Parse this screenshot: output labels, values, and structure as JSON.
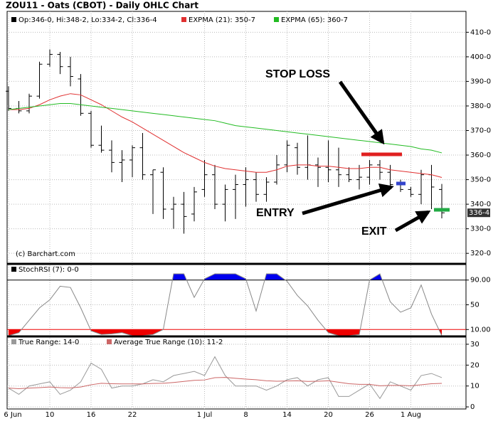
{
  "chart_data": [
    {
      "type": "ohlc",
      "title": "ZOU11 - Oats (CBOT) - Daily OHLC Chart",
      "annotations": [
        "STOP LOSS",
        "ENTRY",
        "EXIT"
      ],
      "credit": "(c) Barchart.com",
      "last_label": "336-4",
      "ylim": [
        316,
        418.5
      ],
      "yticks": [
        {
          "value": 320,
          "label": "320-0"
        },
        {
          "value": 330,
          "label": "330-0"
        },
        {
          "value": 340,
          "label": "340-0"
        },
        {
          "value": 350,
          "label": "350-0"
        },
        {
          "value": 360,
          "label": "360-0"
        },
        {
          "value": 370,
          "label": "370-0"
        },
        {
          "value": 380,
          "label": "380-0"
        },
        {
          "value": 390,
          "label": "390-0"
        },
        {
          "value": 400,
          "label": "400-0"
        },
        {
          "value": 410,
          "label": "410-0"
        }
      ],
      "grid": true,
      "series": [
        {
          "name": "Op:346-0, Hi:348-2, Lo:334-2, Cl:336-4",
          "color": "#000000",
          "open": [
            386,
            379,
            378,
            384,
            397,
            401,
            396,
            391,
            377,
            364,
            362,
            357,
            358,
            363,
            352,
            353,
            338,
            340,
            336,
            346,
            352,
            340,
            346,
            348,
            350,
            344,
            349,
            356,
            363,
            355,
            356,
            355,
            354,
            352,
            350,
            351,
            356,
            353,
            348,
            346,
            344,
            352,
            346
          ],
          "high": [
            388,
            382,
            385,
            398,
            403,
            402,
            400,
            393,
            378,
            372,
            366,
            362,
            364,
            369,
            354,
            355,
            343,
            345,
            347,
            358,
            356,
            348,
            352,
            355,
            353,
            351,
            360,
            366,
            365,
            368,
            359,
            366,
            363,
            355,
            356,
            358,
            358,
            356,
            350,
            347,
            354,
            356,
            348.25
          ],
          "low": [
            378,
            377,
            377,
            383,
            396,
            393,
            388,
            376,
            363,
            361,
            353,
            349,
            351,
            350,
            336,
            334,
            330,
            328,
            333,
            343,
            338,
            333,
            334,
            339,
            341,
            341,
            348,
            353,
            352,
            350,
            347,
            349,
            347,
            349,
            346,
            348,
            350,
            346,
            345,
            343,
            340,
            338,
            334.25
          ],
          "close": [
            379,
            378,
            384,
            397,
            401,
            396,
            392,
            377,
            364,
            362,
            357,
            358,
            363,
            352,
            354,
            338,
            340,
            335,
            345,
            352,
            340,
            346,
            348,
            350,
            344,
            349,
            356,
            364,
            355,
            356,
            355,
            354,
            352,
            350,
            351,
            356,
            353,
            348,
            346,
            344,
            352,
            347,
            336.5
          ]
        },
        {
          "name": "EXPMA (21): 350-7",
          "color": "#e03030",
          "values": [
            378.5,
            378.5,
            379,
            380.5,
            382.5,
            384,
            385,
            384.5,
            382.5,
            380.5,
            378,
            375.5,
            373.5,
            371,
            368.5,
            366,
            363.5,
            361,
            359,
            357,
            355.5,
            354.5,
            354,
            353.5,
            353,
            353,
            354,
            355.5,
            356,
            356,
            355.5,
            355.5,
            355,
            354.5,
            354.5,
            355,
            355,
            354,
            353.5,
            353,
            352.5,
            352,
            350.9
          ]
        },
        {
          "name": "EXPMA (65): 360-7",
          "color": "#22bb22",
          "values": [
            378.5,
            379,
            379.5,
            380,
            380.5,
            381,
            381,
            380.5,
            380,
            379.5,
            379,
            378.5,
            378,
            377.5,
            377,
            376.5,
            376,
            375.5,
            375,
            374.5,
            374,
            373,
            372,
            371.5,
            371,
            370.5,
            370,
            369.5,
            369,
            368.5,
            368,
            367.5,
            367,
            366.5,
            366,
            365.5,
            365,
            364.5,
            364,
            363.5,
            362.5,
            362,
            360.9
          ]
        }
      ]
    },
    {
      "type": "line",
      "ylim": [
        0,
        115
      ],
      "yticks": [
        {
          "value": 10,
          "label": "10.00"
        },
        50,
        {
          "value": 90,
          "label": "90.00"
        }
      ],
      "legend_color": "#000000",
      "overbought_color": "#0000ee",
      "oversold_color": "#ee0000",
      "series": [
        {
          "name": "StochRSI (7): 0-0",
          "color": "#888888",
          "values": [
            0,
            5,
            25,
            45,
            58,
            80,
            78,
            45,
            8,
            2,
            3,
            5,
            0,
            0,
            2,
            10,
            100,
            100,
            62,
            92,
            100,
            100,
            100,
            92,
            40,
            100,
            100,
            88,
            65,
            48,
            25,
            5,
            0,
            0,
            2,
            90,
            100,
            55,
            38,
            45,
            82,
            35,
            0
          ]
        }
      ]
    },
    {
      "type": "line",
      "ylim": [
        -1,
        33.4
      ],
      "yticks": [
        0,
        10,
        20,
        30
      ],
      "grid": true,
      "categories": [
        "6 Jun",
        null,
        null,
        null,
        "10",
        null,
        null,
        null,
        "16",
        null,
        null,
        null,
        "22",
        null,
        null,
        null,
        null,
        null,
        null,
        "1 Jul",
        null,
        null,
        null,
        "8",
        null,
        null,
        null,
        "14",
        null,
        null,
        null,
        "20",
        null,
        null,
        null,
        "26",
        null,
        null,
        null,
        "1 Aug",
        null,
        null,
        null
      ],
      "series": [
        {
          "name": "True Range: 14-0",
          "color": "#999999",
          "values": [
            9,
            6,
            10,
            11,
            12,
            6,
            8,
            12,
            21,
            18,
            9,
            10,
            10,
            11,
            13,
            12,
            15,
            16,
            17,
            15,
            24,
            15,
            10,
            10,
            10,
            8,
            10,
            13,
            14,
            10,
            13,
            14,
            5,
            5,
            8,
            11,
            4,
            12,
            10,
            8,
            15,
            16,
            14
          ]
        },
        {
          "name": "Average True Range (10): 11-2",
          "color": "#cc6666",
          "values": [
            9,
            8.7,
            9,
            9.2,
            9.5,
            9.2,
            9.1,
            9.5,
            10.6,
            11.3,
            11.1,
            11,
            11,
            11,
            11.2,
            11.3,
            11.7,
            12.2,
            12.7,
            12.9,
            14,
            14.1,
            13.7,
            13.3,
            13,
            12.5,
            12.3,
            12.4,
            12.5,
            12.2,
            12.3,
            12.5,
            11.8,
            11.1,
            10.8,
            10.8,
            10.1,
            10.3,
            10.3,
            10.1,
            10.6,
            11.1,
            11.25
          ]
        }
      ]
    }
  ]
}
